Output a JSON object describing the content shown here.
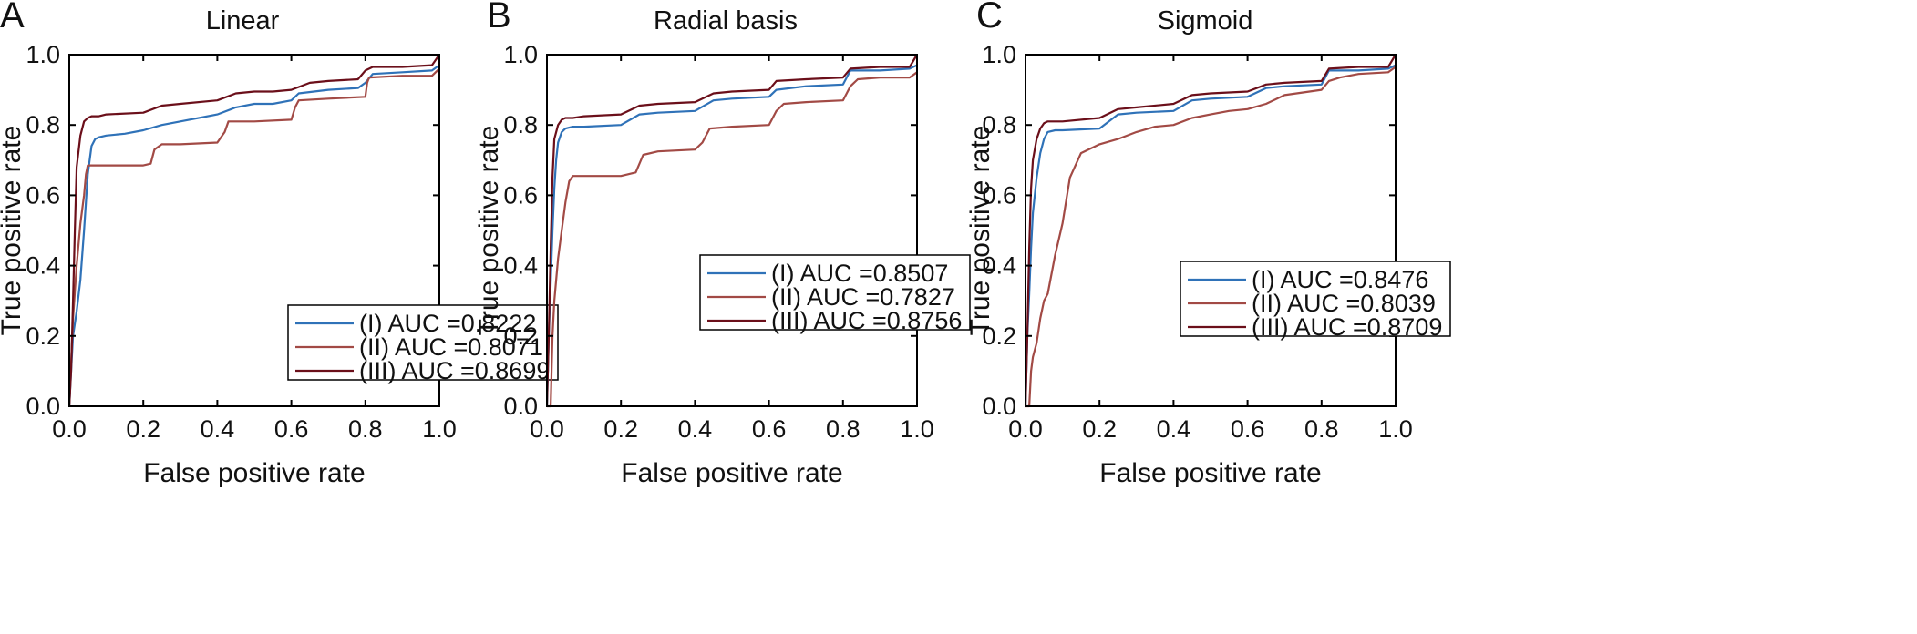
{
  "chart_data": [
    {
      "type": "line",
      "panel_label": "A",
      "title": "Linear",
      "xlabel": "False positive rate",
      "ylabel": "True positive rate",
      "xlim": [
        0,
        1
      ],
      "ylim": [
        0,
        1
      ],
      "xticks": [
        "0.0",
        "0.2",
        "0.4",
        "0.6",
        "0.8",
        "1.0"
      ],
      "yticks": [
        "0.0",
        "0.2",
        "0.4",
        "0.6",
        "0.8",
        "1.0"
      ],
      "grid": false,
      "legend_position": "bottom-right",
      "series": [
        {
          "name": "(I) AUC =0.8222",
          "color": "#2f72b8",
          "x": [
            0,
            0.005,
            0.01,
            0.02,
            0.03,
            0.04,
            0.05,
            0.06,
            0.07,
            0.08,
            0.1,
            0.15,
            0.2,
            0.25,
            0.3,
            0.4,
            0.45,
            0.5,
            0.55,
            0.6,
            0.62,
            0.7,
            0.78,
            0.8,
            0.82,
            0.9,
            0.98,
            1.0
          ],
          "y": [
            0,
            0.1,
            0.2,
            0.27,
            0.36,
            0.5,
            0.66,
            0.74,
            0.76,
            0.765,
            0.77,
            0.775,
            0.785,
            0.8,
            0.81,
            0.83,
            0.85,
            0.86,
            0.86,
            0.87,
            0.89,
            0.9,
            0.905,
            0.92,
            0.945,
            0.95,
            0.955,
            0.97
          ]
        },
        {
          "name": "(II) AUC =0.8071",
          "color": "#a24a45",
          "x": [
            0,
            0.005,
            0.01,
            0.02,
            0.03,
            0.04,
            0.045,
            0.05,
            0.1,
            0.2,
            0.22,
            0.23,
            0.25,
            0.3,
            0.4,
            0.42,
            0.43,
            0.5,
            0.6,
            0.61,
            0.62,
            0.7,
            0.8,
            0.805,
            0.81,
            0.9,
            0.98,
            1.0
          ],
          "y": [
            0,
            0.12,
            0.25,
            0.4,
            0.52,
            0.6,
            0.66,
            0.685,
            0.685,
            0.685,
            0.69,
            0.73,
            0.745,
            0.745,
            0.75,
            0.78,
            0.81,
            0.81,
            0.815,
            0.85,
            0.87,
            0.875,
            0.88,
            0.92,
            0.935,
            0.94,
            0.94,
            0.96
          ]
        },
        {
          "name": "(III) AUC =0.8699",
          "color": "#6b0f1a",
          "x": [
            0,
            0.005,
            0.01,
            0.015,
            0.02,
            0.03,
            0.04,
            0.05,
            0.06,
            0.08,
            0.1,
            0.2,
            0.25,
            0.3,
            0.4,
            0.45,
            0.5,
            0.55,
            0.6,
            0.65,
            0.7,
            0.78,
            0.8,
            0.82,
            0.9,
            0.98,
            1.0
          ],
          "y": [
            0,
            0.1,
            0.3,
            0.5,
            0.68,
            0.77,
            0.81,
            0.82,
            0.825,
            0.825,
            0.83,
            0.835,
            0.855,
            0.86,
            0.87,
            0.89,
            0.895,
            0.895,
            0.9,
            0.92,
            0.925,
            0.93,
            0.955,
            0.965,
            0.965,
            0.97,
            1.0
          ]
        }
      ]
    },
    {
      "type": "line",
      "panel_label": "B",
      "title": "Radial basis",
      "xlabel": "False positive rate",
      "ylabel": "True positive rate",
      "xlim": [
        0,
        1
      ],
      "ylim": [
        0,
        1
      ],
      "xticks": [
        "0.0",
        "0.2",
        "0.4",
        "0.6",
        "0.8",
        "1.0"
      ],
      "yticks": [
        "0.0",
        "0.2",
        "0.4",
        "0.6",
        "0.8",
        "1.0"
      ],
      "grid": false,
      "legend_position": "bottom-right",
      "series": [
        {
          "name": "(I) AUC =0.8507",
          "color": "#2f72b8",
          "x": [
            0,
            0.005,
            0.01,
            0.015,
            0.02,
            0.025,
            0.03,
            0.04,
            0.05,
            0.07,
            0.1,
            0.2,
            0.25,
            0.3,
            0.4,
            0.45,
            0.5,
            0.6,
            0.62,
            0.7,
            0.8,
            0.82,
            0.9,
            0.98,
            1.0
          ],
          "y": [
            0,
            0.2,
            0.35,
            0.5,
            0.62,
            0.7,
            0.75,
            0.78,
            0.79,
            0.795,
            0.795,
            0.8,
            0.83,
            0.835,
            0.84,
            0.87,
            0.875,
            0.88,
            0.9,
            0.91,
            0.915,
            0.955,
            0.955,
            0.96,
            0.97
          ]
        },
        {
          "name": "(II) AUC =0.7827",
          "color": "#a24a45",
          "x": [
            0,
            0.01,
            0.015,
            0.02,
            0.03,
            0.04,
            0.05,
            0.06,
            0.07,
            0.1,
            0.2,
            0.24,
            0.26,
            0.3,
            0.4,
            0.42,
            0.44,
            0.5,
            0.6,
            0.62,
            0.64,
            0.7,
            0.8,
            0.82,
            0.84,
            0.9,
            0.98,
            1.0
          ],
          "y": [
            0,
            0,
            0.2,
            0.3,
            0.42,
            0.5,
            0.58,
            0.64,
            0.655,
            0.655,
            0.655,
            0.665,
            0.715,
            0.725,
            0.73,
            0.75,
            0.79,
            0.795,
            0.8,
            0.84,
            0.86,
            0.865,
            0.87,
            0.91,
            0.93,
            0.935,
            0.935,
            0.95
          ]
        },
        {
          "name": "(III) AUC =0.8756",
          "color": "#6b0f1a",
          "x": [
            0,
            0.005,
            0.01,
            0.015,
            0.02,
            0.03,
            0.04,
            0.05,
            0.07,
            0.1,
            0.2,
            0.25,
            0.3,
            0.4,
            0.45,
            0.5,
            0.6,
            0.62,
            0.7,
            0.8,
            0.82,
            0.9,
            0.98,
            1.0
          ],
          "y": [
            0,
            0.2,
            0.45,
            0.65,
            0.76,
            0.8,
            0.815,
            0.82,
            0.82,
            0.825,
            0.83,
            0.855,
            0.86,
            0.865,
            0.89,
            0.895,
            0.9,
            0.925,
            0.93,
            0.935,
            0.96,
            0.965,
            0.965,
            1.0
          ]
        }
      ]
    },
    {
      "type": "line",
      "panel_label": "C",
      "title": "Sigmoid",
      "xlabel": "False positive rate",
      "ylabel": "True positive rate",
      "xlim": [
        0,
        1
      ],
      "ylim": [
        0,
        1
      ],
      "xticks": [
        "0.0",
        "0.2",
        "0.4",
        "0.6",
        "0.8",
        "1.0"
      ],
      "yticks": [
        "0.0",
        "0.2",
        "0.4",
        "0.6",
        "0.8",
        "1.0"
      ],
      "grid": false,
      "legend_position": "bottom-right",
      "series": [
        {
          "name": "(I) AUC =0.8476",
          "color": "#2f72b8",
          "x": [
            0,
            0.005,
            0.01,
            0.015,
            0.02,
            0.03,
            0.04,
            0.05,
            0.06,
            0.08,
            0.1,
            0.2,
            0.25,
            0.3,
            0.4,
            0.45,
            0.5,
            0.6,
            0.65,
            0.7,
            0.8,
            0.82,
            0.9,
            0.98,
            1.0
          ],
          "y": [
            0,
            0.2,
            0.32,
            0.45,
            0.55,
            0.65,
            0.72,
            0.76,
            0.78,
            0.785,
            0.785,
            0.79,
            0.83,
            0.835,
            0.84,
            0.87,
            0.875,
            0.88,
            0.905,
            0.91,
            0.915,
            0.955,
            0.955,
            0.96,
            0.97
          ]
        },
        {
          "name": "(II) AUC =0.8039",
          "color": "#a24a45",
          "x": [
            0,
            0.01,
            0.015,
            0.02,
            0.03,
            0.04,
            0.05,
            0.06,
            0.08,
            0.1,
            0.12,
            0.15,
            0.2,
            0.25,
            0.3,
            0.35,
            0.4,
            0.45,
            0.5,
            0.55,
            0.6,
            0.65,
            0.7,
            0.8,
            0.82,
            0.85,
            0.9,
            0.98,
            1.0
          ],
          "y": [
            0,
            0,
            0.1,
            0.14,
            0.18,
            0.25,
            0.3,
            0.32,
            0.43,
            0.52,
            0.65,
            0.72,
            0.745,
            0.76,
            0.78,
            0.795,
            0.8,
            0.82,
            0.83,
            0.84,
            0.845,
            0.86,
            0.885,
            0.9,
            0.925,
            0.935,
            0.945,
            0.95,
            0.965
          ]
        },
        {
          "name": "(III) AUC =0.8709",
          "color": "#6b0f1a",
          "x": [
            0,
            0.005,
            0.01,
            0.015,
            0.02,
            0.03,
            0.04,
            0.05,
            0.06,
            0.08,
            0.1,
            0.2,
            0.25,
            0.3,
            0.4,
            0.45,
            0.5,
            0.6,
            0.65,
            0.7,
            0.8,
            0.82,
            0.9,
            0.98,
            1.0
          ],
          "y": [
            0,
            0.2,
            0.45,
            0.62,
            0.7,
            0.76,
            0.79,
            0.805,
            0.81,
            0.81,
            0.81,
            0.82,
            0.845,
            0.85,
            0.86,
            0.885,
            0.89,
            0.895,
            0.915,
            0.92,
            0.925,
            0.96,
            0.965,
            0.965,
            1.0
          ]
        }
      ]
    }
  ]
}
